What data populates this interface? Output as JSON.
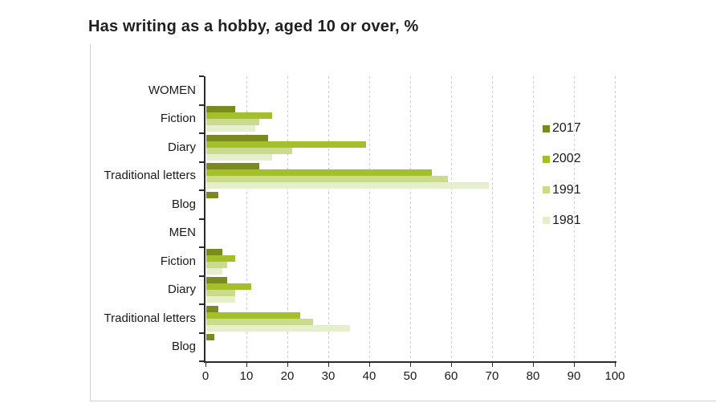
{
  "title": "Has writing as a hobby, aged 10 or over, %",
  "chart_data": {
    "type": "bar",
    "orientation": "horizontal",
    "title": "Has writing as a hobby, aged 10 or over, %",
    "categories": [
      "WOMEN",
      "Fiction",
      "Diary",
      "Traditional letters",
      "Blog",
      "MEN",
      "Fiction",
      "Diary",
      "Traditional letters",
      "Blog"
    ],
    "group_headers": [
      "WOMEN",
      "MEN"
    ],
    "series": [
      {
        "name": "2017",
        "color": "#7b8a1f",
        "values": [
          null,
          7,
          15,
          13,
          3,
          null,
          4,
          5,
          3,
          2
        ]
      },
      {
        "name": "2002",
        "color": "#a3bf29",
        "values": [
          null,
          16,
          39,
          55,
          null,
          null,
          7,
          11,
          23,
          null
        ]
      },
      {
        "name": "1991",
        "color": "#cadc8b",
        "values": [
          null,
          13,
          21,
          59,
          null,
          null,
          5,
          7,
          26,
          null
        ]
      },
      {
        "name": "1981",
        "color": "#e6efcb",
        "values": [
          null,
          12,
          16,
          69,
          null,
          null,
          4,
          7,
          35,
          null
        ]
      }
    ],
    "xlim": [
      0,
      100
    ],
    "xticks": [
      0,
      10,
      20,
      30,
      40,
      50,
      60,
      70,
      80,
      90,
      100
    ],
    "grid": "vertical-dashed",
    "gridline_color": "#cccccc",
    "axis_color": "#2b2b2b",
    "legend_position": "right",
    "legend_labels": [
      "2017",
      "2002",
      "1991",
      "1981"
    ]
  }
}
